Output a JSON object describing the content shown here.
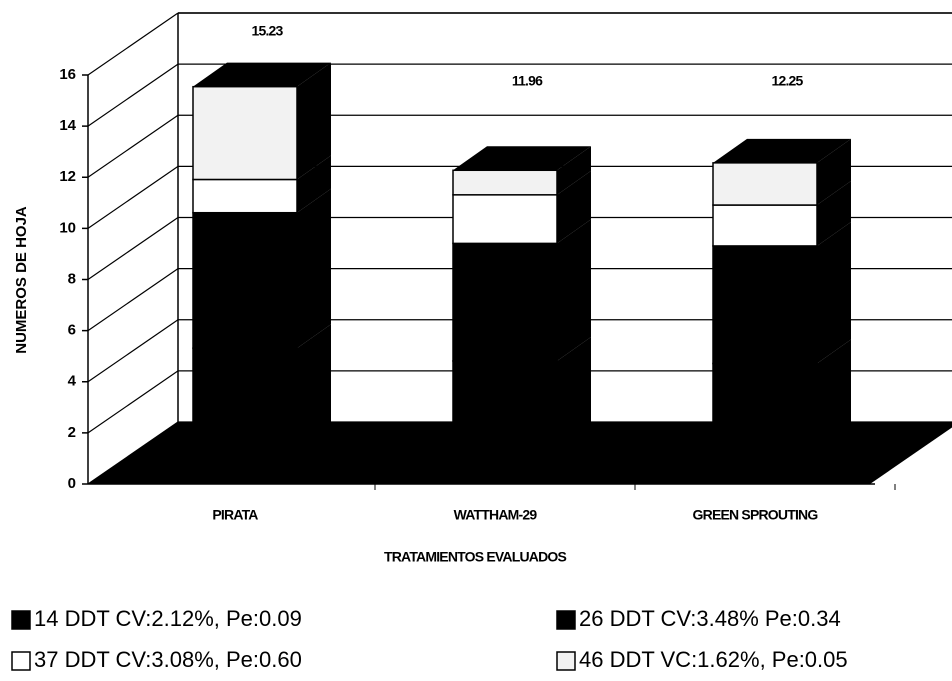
{
  "chart_data": {
    "type": "bar3d_stacked",
    "y_label": "NUMEROS DE HOJA",
    "x_label": "TRATAMIENTOS EVALUADOS",
    "categories": [
      "PIRATA",
      "WATTHAM-29",
      "GREEN SPROUTING"
    ],
    "series": [
      {
        "name": "14 DDT CV:2.12%,  Pe:0.09",
        "color": "#000000",
        "values": [
          5.0,
          4.5,
          4.4
        ]
      },
      {
        "name": "26 DDT CV:3.48% Pe:0.34",
        "color": "#000000",
        "values": [
          5.3,
          4.6,
          4.6
        ]
      },
      {
        "name": "37 DDT CV:3.08%, Pe:0.60",
        "color": "#ffffff",
        "values": [
          1.3,
          1.9,
          1.6
        ]
      },
      {
        "name": "46 DDT VC:1.62%, Pe:0.05",
        "color": "#f2f2f2",
        "values": [
          3.63,
          0.96,
          1.65
        ]
      }
    ],
    "totals": [
      15.23,
      11.96,
      12.25
    ],
    "ylim": [
      0,
      16
    ],
    "yticks": [
      0,
      2,
      4,
      6,
      8,
      10,
      12,
      14,
      16
    ],
    "grid": true
  }
}
